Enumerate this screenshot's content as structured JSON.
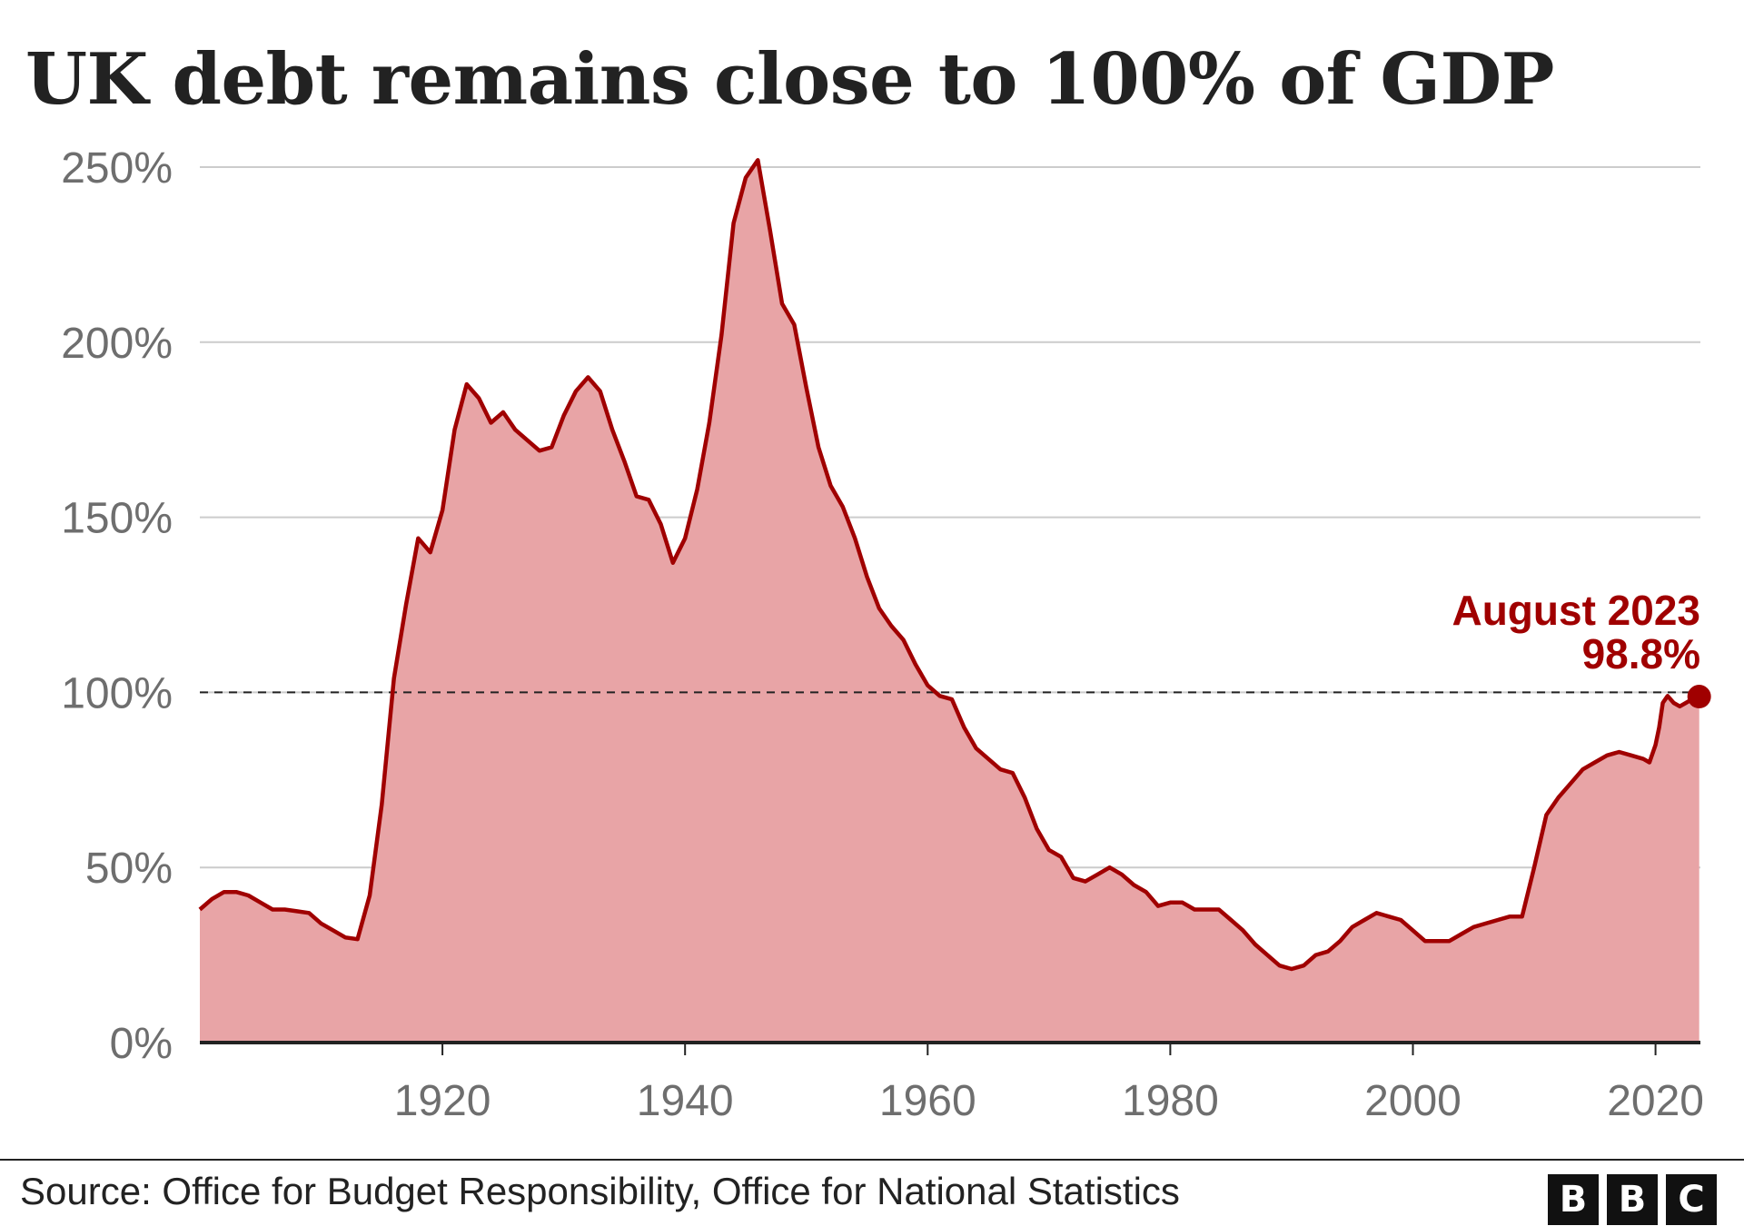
{
  "chart_data": {
    "type": "area",
    "title": "UK debt remains close to 100% of GDP",
    "source": "Source: Office for Budget Responsibility, Office for National Statistics",
    "brand": [
      "B",
      "B",
      "C"
    ],
    "colors": {
      "line": "#a00000",
      "fill": "#e8a4a6",
      "grid": "#cccccc",
      "axis": "#222222"
    },
    "xlim": [
      1900,
      2023.7
    ],
    "ylim": [
      0,
      250
    ],
    "x_ticks": [
      "1920",
      "1940",
      "1960",
      "1980",
      "2000",
      "2020"
    ],
    "y_ticks": [
      "0%",
      "50%",
      "100%",
      "150%",
      "200%",
      "250%"
    ],
    "reference_line": {
      "y": 100,
      "style": "dashed"
    },
    "annotation": {
      "label": "August 2023",
      "value": "98.8%",
      "x": 2023.6,
      "y": 98.8
    },
    "series": [
      {
        "x": [
          1900,
          1901,
          1902,
          1903,
          1904,
          1905,
          1906,
          1907,
          1908,
          1909,
          1910,
          1911,
          1912,
          1913,
          1914,
          1915,
          1916,
          1917,
          1918,
          1919,
          1920,
          1921,
          1922,
          1923,
          1924,
          1925,
          1926,
          1927,
          1928,
          1929,
          1930,
          1931,
          1932,
          1933,
          1934,
          1935,
          1936,
          1937,
          1938,
          1939,
          1940,
          1941,
          1942,
          1943,
          1944,
          1945,
          1946,
          1947,
          1948,
          1949,
          1950,
          1951,
          1952,
          1953,
          1954,
          1955,
          1956,
          1957,
          1958,
          1959,
          1960,
          1961,
          1962,
          1963,
          1964,
          1965,
          1966,
          1967,
          1968,
          1969,
          1970,
          1971,
          1972,
          1973,
          1974,
          1975,
          1976,
          1977,
          1978,
          1979,
          1980,
          1981,
          1982,
          1983,
          1984,
          1985,
          1986,
          1987,
          1988,
          1989,
          1990,
          1991,
          1992,
          1993,
          1994,
          1995,
          1996,
          1997,
          1998,
          1999,
          2000,
          2001,
          2002,
          2003,
          2004,
          2005,
          2006,
          2007,
          2008,
          2009,
          2010,
          2011,
          2012,
          2013,
          2014,
          2015,
          2016,
          2017,
          2018,
          2019,
          2019.5,
          2020,
          2020.3,
          2020.6,
          2021,
          2021.5,
          2022,
          2022.5,
          2023,
          2023.6
        ],
        "values": [
          38,
          41,
          43,
          43,
          42,
          40,
          38,
          38,
          37.5,
          37,
          34,
          32,
          30,
          29.5,
          42,
          68,
          104,
          125,
          144,
          140,
          152,
          175,
          188,
          184,
          177,
          180,
          175,
          172,
          169,
          170,
          179,
          186,
          190,
          186,
          175,
          166,
          156,
          155,
          148,
          137,
          144,
          158,
          177,
          202,
          234,
          247,
          252,
          232,
          211,
          205,
          187,
          170,
          159,
          153,
          144,
          133,
          124,
          119,
          115,
          108,
          102,
          99,
          98,
          90,
          84,
          81,
          78,
          77,
          70,
          61,
          55,
          53,
          47,
          46,
          48,
          50,
          48,
          45,
          43,
          39,
          40,
          40,
          38,
          38,
          38,
          35,
          32,
          28,
          25,
          22,
          21,
          22,
          25,
          26,
          29,
          33,
          35,
          37,
          36,
          35,
          32,
          29,
          29,
          29,
          31,
          33,
          34,
          35,
          36,
          36,
          50,
          65,
          70,
          74,
          78,
          80,
          82,
          83,
          82,
          81,
          80,
          85,
          90,
          97,
          99,
          97,
          96,
          97,
          98,
          98.8
        ]
      }
    ]
  }
}
